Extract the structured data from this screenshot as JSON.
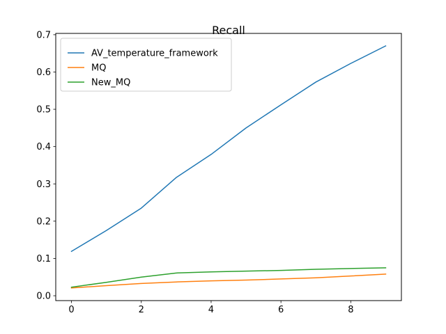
{
  "chart_data": {
    "type": "line",
    "title": "Recall",
    "xlabel": "",
    "ylabel": "",
    "x": [
      0,
      1,
      2,
      3,
      4,
      5,
      6,
      7,
      8,
      9
    ],
    "xlim": [
      -0.45,
      9.45
    ],
    "ylim": [
      -0.013,
      0.7035
    ],
    "xticks": [
      0,
      2,
      4,
      6,
      8
    ],
    "yticks": [
      0.0,
      0.1,
      0.2,
      0.3,
      0.4,
      0.5,
      0.6,
      0.7
    ],
    "xtick_labels": [
      "0",
      "2",
      "4",
      "6",
      "8"
    ],
    "ytick_labels": [
      "0.0",
      "0.1",
      "0.2",
      "0.3",
      "0.4",
      "0.5",
      "0.6",
      "0.7"
    ],
    "grid": false,
    "legend_position": "top-left",
    "series": [
      {
        "name": "AV_temperature_framework",
        "color": "#1f77b4",
        "values": [
          0.119,
          0.175,
          0.235,
          0.317,
          0.379,
          0.45,
          0.512,
          0.573,
          0.623,
          0.67
        ]
      },
      {
        "name": "MQ",
        "color": "#ff7f0e",
        "values": [
          0.021,
          0.027,
          0.033,
          0.037,
          0.04,
          0.042,
          0.045,
          0.048,
          0.053,
          0.058
        ]
      },
      {
        "name": "New_MQ",
        "color": "#2ca02c",
        "values": [
          0.023,
          0.036,
          0.05,
          0.061,
          0.064,
          0.066,
          0.068,
          0.071,
          0.073,
          0.075
        ]
      }
    ]
  }
}
